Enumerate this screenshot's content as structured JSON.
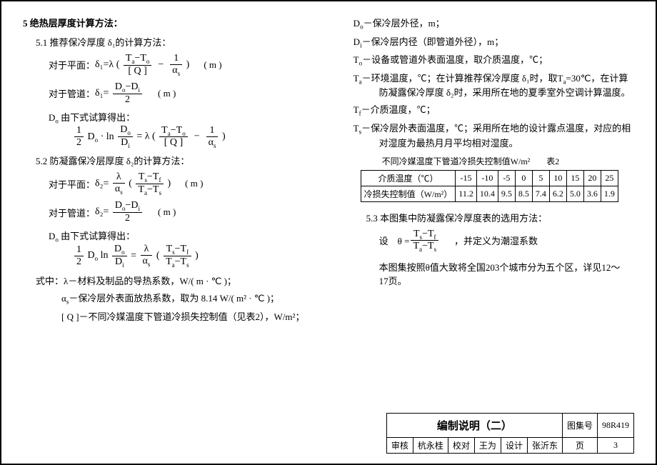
{
  "section": {
    "num": "5",
    "title": "绝热层厚度计算方法："
  },
  "s51": {
    "num": "5.1",
    "title": "推荐保冷厚度 δ₁的计算方法：",
    "planeLabel": "对于平面：",
    "planeLhs": "δ₁=λ",
    "planeTerm1Num": "T<sub>a</sub>−T<sub>o</sub>",
    "planeTerm1Den": "[ Q ]",
    "planeTerm2Num": "1",
    "planeTerm2Den": "α<sub>s</sub>",
    "pipeLabel": "对于管道：",
    "pipeLhs": "δ₁=",
    "pipeNum": "D<sub>o</sub>−D<sub>i</sub>",
    "pipeDen": "2",
    "doNote": "D<sub>o</sub> 由下式试算得出：",
    "doLhs1Num": "1",
    "doLhs1Den": "2",
    "doLhs2": "D<sub>o</sub> · ln",
    "doLhs3Num": "D<sub>o</sub>",
    "doLhs3Den": "D<sub>i</sub>",
    "doEq": " = λ",
    "unit": "( m )"
  },
  "s52": {
    "num": "5.2",
    "title": "防凝露保冷层厚度 δ₂的计算方法：",
    "planeLabel": "对于平面：",
    "planeLhs": "δ₂=",
    "planeFrac1Num": "λ",
    "planeFrac1Den": "α<sub>s</sub>",
    "planeFrac2Num": "T<sub>s</sub>−T<sub>f</sub>",
    "planeFrac2Den": "T<sub>a</sub>−T<sub>s</sub>",
    "pipeLabel": "对于管道：",
    "pipeLhs": "δ₂=",
    "pipeNum": "D<sub>o</sub>−D<sub>i</sub>",
    "pipeDen": "2",
    "doNote": "D<sub>o</sub> 由下式试算得出：",
    "doLhs1Num": "1",
    "doLhs1Den": "2",
    "doLhs2": "D<sub>o</sub> ln",
    "doLhs3Num": "D<sub>o</sub>",
    "doLhs3Den": "D<sub>i</sub>",
    "doEq": " = ",
    "doRhs1Num": "λ",
    "doRhs1Den": "α<sub>s</sub>",
    "doRhs2Num": "T<sub>s</sub>−T<sub>f</sub>",
    "doRhs2Den": "T<sub>a</sub>−T<sub>s</sub>",
    "unit": "( m )"
  },
  "where": {
    "intro": "式中：",
    "lambda": "λ－材料及制品的导热系数，W/( m · ℃ )；",
    "alphas": "α<sub>s</sub>－保冷层外表面放热系数，取为 8.14 W/( m² · ℃ )；",
    "q": "[ Q ]－不同冷媒温度下管道冷损失控制值（见表2），W/m²；"
  },
  "defs": {
    "Do": "D<sub>o</sub>－保冷层外径，m；",
    "Di": "D<sub>i</sub>－保冷层内径（即管道外径），m；",
    "To": "T<sub>o</sub>－设备或管道外表面温度，取介质温度，℃；",
    "Ta": "T<sub>a</sub>－环境温度，℃；在计算推荐保冷厚度 δ₁时，取T<sub>a</sub>=30℃，在计算防凝露保冷厚度 δ₂时，采用所在地的夏季室外空调计算温度。",
    "Tf": "T<sub>f</sub>－介质温度，℃；",
    "Ts": "T<sub>s</sub>－保冷层外表面温度，℃；采用所在地的设计露点温度，对应的相对湿度为最热月月平均相对湿度。"
  },
  "table2": {
    "caption": "不同冷媒温度下管道冷损失控制值W/m²",
    "tabLabel": "表2",
    "rowhead1": "介质温度（℃）",
    "rowhead2": "冷损失控制值（W/m²）",
    "temps": [
      "-15",
      "-10",
      "-5",
      "0",
      "5",
      "10",
      "15",
      "20",
      "25"
    ],
    "vals": [
      "11.2",
      "10.4",
      "9.5",
      "8.5",
      "7.4",
      "6.2",
      "5.0",
      "3.6",
      "1.9"
    ]
  },
  "s53": {
    "num": "5.3",
    "title": "本图集中防凝露保冷厚度表的选用方法：",
    "thetaLabel": "设　θ =",
    "thetaNum": "T<sub>s</sub>−T<sub>f</sub>",
    "thetaDen": "T<sub>a</sub>−T<sub>s</sub>",
    "thetaNote": "，并定义为潮湿系数",
    "para": "本图集按照θ值大致将全国203个城市分为五个区，详见12～17页。"
  },
  "titleblock": {
    "title": "编制说明（二）",
    "atlasLabel": "图集号",
    "atlasNo": "98R419",
    "reviewLabel": "审核",
    "reviewName": "杭永桂",
    "checkLabel": "校对",
    "checkName": "王为",
    "designLabel": "设计",
    "designName": "张沂东",
    "pageLabel": "页",
    "pageNo": "3"
  }
}
